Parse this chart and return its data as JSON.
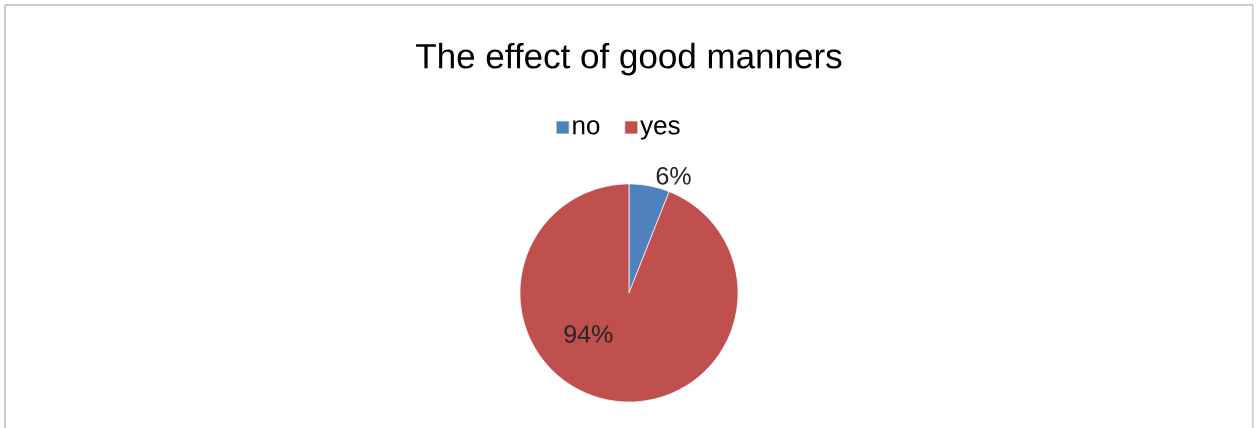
{
  "chart_data": {
    "type": "pie",
    "title": "The effect of good manners",
    "categories": [
      "no",
      "yes"
    ],
    "values": [
      6,
      94
    ],
    "colors": [
      "#4f81bd",
      "#c0504d"
    ],
    "value_labels": [
      "6%",
      "94%"
    ],
    "legend": "top"
  }
}
